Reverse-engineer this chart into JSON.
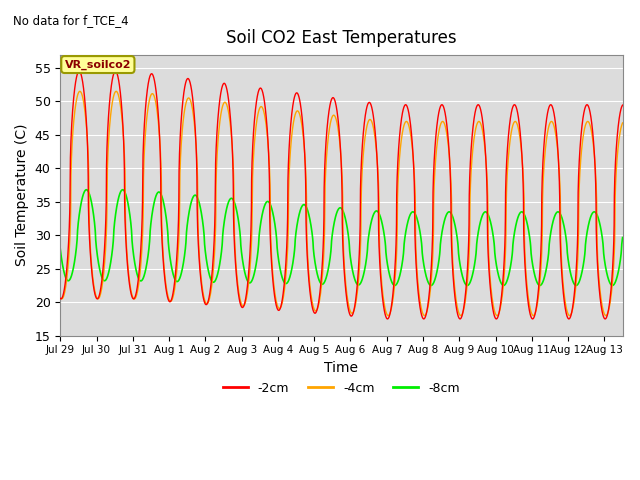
{
  "title": "Soil CO2 East Temperatures",
  "no_data_label": "No data for f_TCE_4",
  "legend_label": "VR_soilco2",
  "xlabel": "Time",
  "ylabel": "Soil Temperature (C)",
  "ylim": [
    15,
    57
  ],
  "yticks": [
    15,
    20,
    25,
    30,
    35,
    40,
    45,
    50,
    55
  ],
  "background_color": "#dcdcdc",
  "line_colors": {
    "-2cm": "#ff0000",
    "-4cm": "#ffa500",
    "-8cm": "#00ee00"
  },
  "start_day": 0.0,
  "end_day": 15.5,
  "num_points": 5000,
  "xtick_labels": [
    "Jul 29",
    "Jul 30",
    "Jul 31",
    "Aug 1",
    "Aug 2",
    "Aug 3",
    "Aug 4",
    "Aug 5",
    "Aug 6",
    "Aug 7",
    "Aug 8",
    "Aug 9",
    "Aug 10",
    "Aug 11",
    "Aug 12",
    "Aug 13"
  ],
  "xtick_positions": [
    0,
    1,
    2,
    3,
    4,
    5,
    6,
    7,
    8,
    9,
    10,
    11,
    12,
    13,
    14,
    15
  ]
}
